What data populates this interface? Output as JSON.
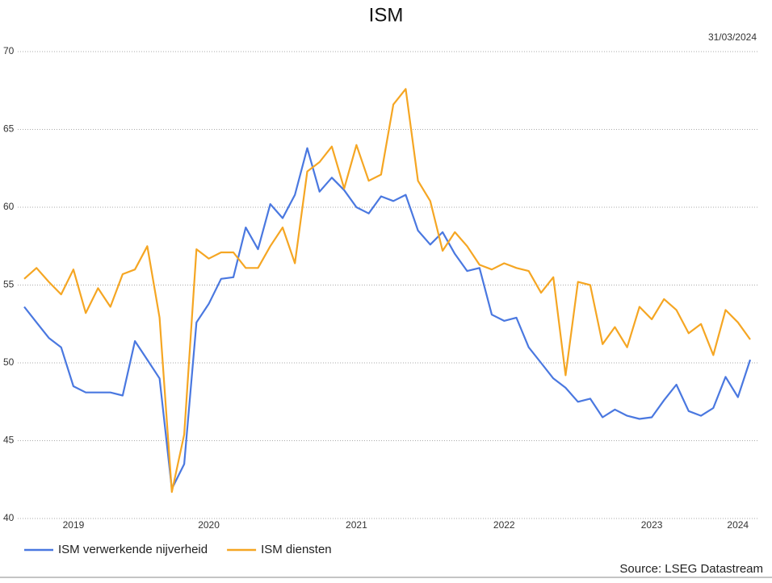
{
  "chart_data": {
    "type": "line",
    "title": "ISM",
    "date": "31/03/2024",
    "source": "Source: LSEG Datastream",
    "categories": [
      null,
      null,
      null,
      null,
      "2019",
      null,
      null,
      null,
      null,
      null,
      null,
      null,
      null,
      null,
      null,
      "2020",
      null,
      null,
      null,
      null,
      null,
      null,
      null,
      null,
      null,
      null,
      null,
      "2021",
      null,
      null,
      null,
      null,
      null,
      null,
      null,
      null,
      null,
      null,
      null,
      "2022",
      null,
      null,
      null,
      null,
      null,
      null,
      null,
      null,
      null,
      null,
      null,
      "2023",
      null,
      null,
      null,
      null,
      null,
      null,
      "2024",
      null
    ],
    "series": [
      {
        "name": "ISM verwerkende nijverheid",
        "color": "#4a78e0",
        "values": [
          53.6,
          52.6,
          51.6,
          51.0,
          48.5,
          48.1,
          48.1,
          48.1,
          47.9,
          51.4,
          50.2,
          49.0,
          41.9,
          43.5,
          52.6,
          53.8,
          55.4,
          55.5,
          58.7,
          57.3,
          60.2,
          59.3,
          60.8,
          63.8,
          61.0,
          61.9,
          61.1,
          60.0,
          59.6,
          60.7,
          60.4,
          60.8,
          58.5,
          57.6,
          58.4,
          57.0,
          55.9,
          56.1,
          53.1,
          52.7,
          52.9,
          51.0,
          50.0,
          49.0,
          48.4,
          47.5,
          47.7,
          46.5,
          47.0,
          46.6,
          46.4,
          46.5,
          47.6,
          48.6,
          46.9,
          46.6,
          47.1,
          49.1,
          47.8,
          50.2
        ]
      },
      {
        "name": "ISM diensten",
        "color": "#f5a623",
        "values": [
          55.4,
          56.1,
          55.2,
          54.4,
          56.0,
          53.2,
          54.8,
          53.6,
          55.7,
          56.0,
          57.5,
          52.9,
          41.7,
          45.4,
          57.3,
          56.7,
          57.1,
          57.1,
          56.1,
          56.1,
          57.5,
          58.7,
          56.4,
          62.3,
          62.9,
          63.9,
          61.2,
          64.0,
          61.7,
          62.1,
          66.6,
          67.6,
          61.7,
          60.4,
          57.2,
          58.4,
          57.5,
          56.3,
          56.0,
          56.4,
          56.1,
          55.9,
          54.5,
          55.5,
          49.2,
          55.2,
          55.0,
          51.2,
          52.3,
          51.0,
          53.6,
          52.8,
          54.1,
          53.4,
          51.9,
          52.5,
          50.5,
          53.4,
          52.6,
          51.5
        ]
      }
    ],
    "ylim": [
      40,
      70
    ],
    "yticks": [
      40,
      45,
      50,
      55,
      60,
      65,
      70
    ],
    "grid": true,
    "legend": "bottom-left"
  }
}
